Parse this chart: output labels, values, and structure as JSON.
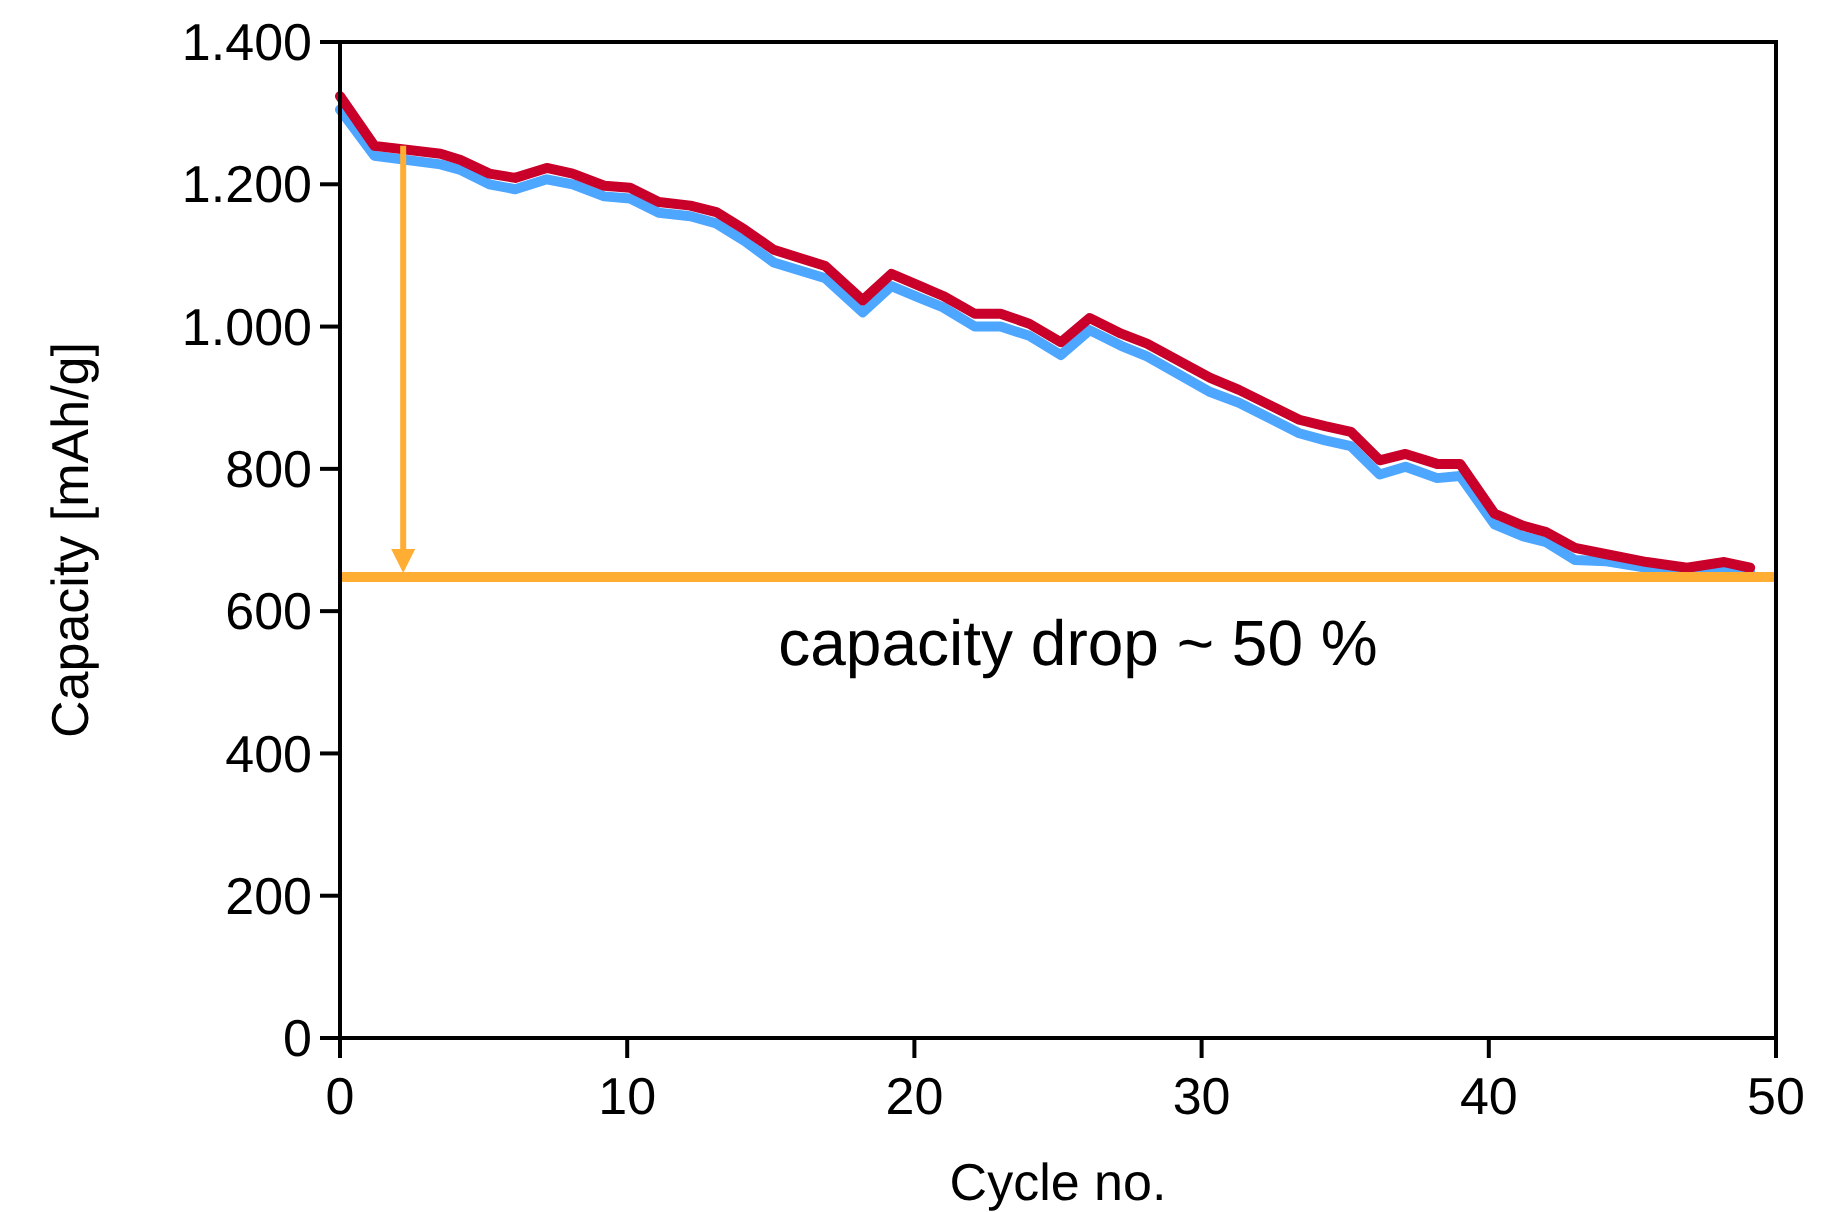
{
  "chart_data": {
    "type": "line",
    "xlabel": "Cycle no.",
    "ylabel": "Capacity [mAh/g]",
    "x": [
      0,
      1.2,
      3.5,
      4.2,
      5.2,
      6.1,
      7.2,
      8.1,
      9.2,
      10.1,
      11.1,
      12.2,
      13.1,
      14.1,
      15.1,
      16.9,
      18.2,
      19.2,
      20.2,
      21,
      22.1,
      23,
      24,
      25.1,
      26.1,
      27.2,
      28.1,
      30.3,
      31.3,
      33.4,
      34.3,
      35.2,
      36.2,
      37.1,
      38.2,
      39,
      40.2,
      41.2,
      42,
      43,
      44.1,
      45.5,
      46.9,
      48.2,
      49.1
    ],
    "series": [
      {
        "color": "#4da6ff",
        "values": [
          1305,
          1240,
          1228,
          1220,
          1200,
          1193,
          1207,
          1200,
          1183,
          1180,
          1160,
          1155,
          1145,
          1120,
          1090,
          1068,
          1020,
          1057,
          1040,
          1027,
          1000,
          1000,
          987,
          960,
          995,
          973,
          958,
          908,
          893,
          850,
          840,
          832,
          792,
          803,
          787,
          790,
          722,
          705,
          697,
          672,
          670,
          661,
          655,
          660,
          655
        ]
      },
      {
        "color": "#c8002a",
        "values": [
          1324,
          1254,
          1243,
          1234,
          1215,
          1209,
          1223,
          1215,
          1198,
          1195,
          1175,
          1170,
          1161,
          1136,
          1108,
          1085,
          1037,
          1074,
          1057,
          1043,
          1018,
          1018,
          1004,
          978,
          1012,
          990,
          976,
          928,
          911,
          869,
          860,
          852,
          812,
          821,
          807,
          807,
          737,
          720,
          711,
          689,
          680,
          669,
          661,
          669,
          661
        ]
      }
    ],
    "xlim": [
      0,
      50
    ],
    "xticks": [
      0,
      10,
      20,
      30,
      40,
      50
    ],
    "ylim": [
      0,
      1400
    ],
    "yticks": [
      0,
      200,
      400,
      600,
      800,
      {
        "value": 1000,
        "label": "1.000"
      },
      {
        "value": 1200,
        "label": "1.200"
      },
      {
        "value": 1400,
        "label": "1.400"
      }
    ],
    "ref_lines": [
      {
        "axis": "y",
        "value": 648,
        "color": "#ffad33"
      }
    ],
    "annotations": [
      "capacity drop ~ 50 %"
    ],
    "grid": false,
    "line_style": "solid",
    "marker": "none"
  }
}
